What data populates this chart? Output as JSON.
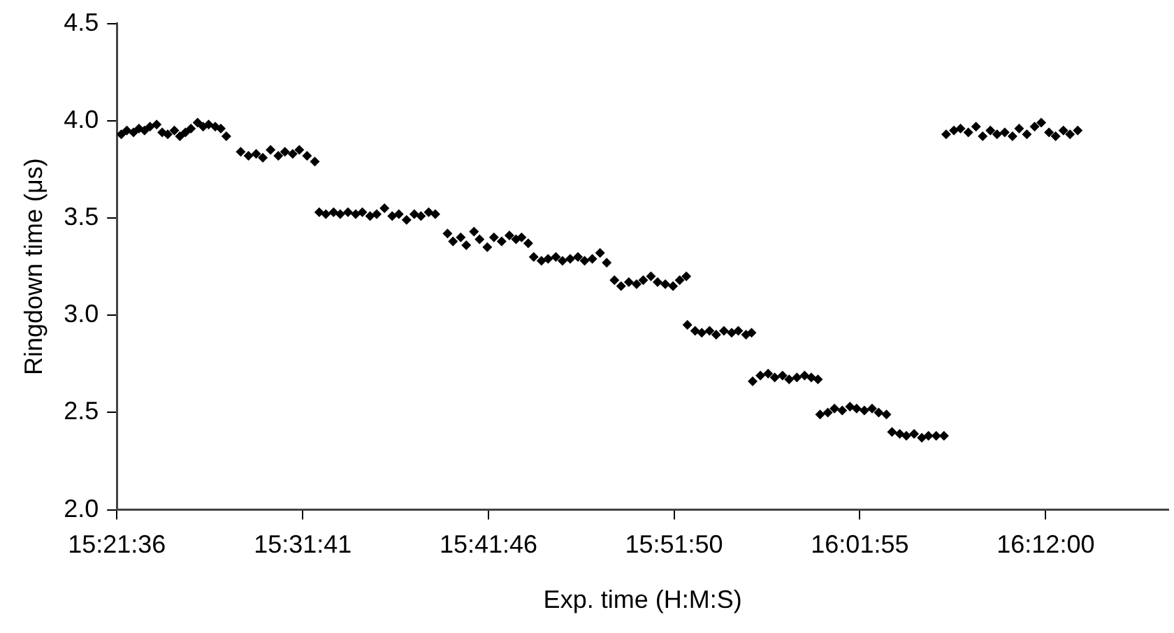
{
  "chart_data": {
    "type": "scatter",
    "xlabel": "Exp. time (H:M:S)",
    "ylabel": "Ringdown time (μs)",
    "marker": "diamond",
    "grid": false,
    "legend": false,
    "xlim": [
      15.36,
      16.311
    ],
    "ylim": [
      2.0,
      4.5
    ],
    "xticks": [
      {
        "value": 15.36,
        "label": "15:21:36"
      },
      {
        "value": 15.5281,
        "label": "15:31:41"
      },
      {
        "value": 15.6961,
        "label": "15:41:46"
      },
      {
        "value": 15.8639,
        "label": "15:51:50"
      },
      {
        "value": 16.0319,
        "label": "16:01:55"
      },
      {
        "value": 16.2,
        "label": "16:12:00"
      }
    ],
    "yticks": [
      {
        "value": 2.0,
        "label": "2.0"
      },
      {
        "value": 2.5,
        "label": "2.5"
      },
      {
        "value": 3.0,
        "label": "3.0"
      },
      {
        "value": 3.5,
        "label": "3.5"
      },
      {
        "value": 4.0,
        "label": "4.0"
      },
      {
        "value": 4.5,
        "label": "4.5"
      }
    ],
    "series": [
      {
        "color": "#000000",
        "x": [
          15.364,
          15.369,
          15.375,
          15.38,
          15.385,
          15.39,
          15.396,
          15.401,
          15.406,
          15.412,
          15.417,
          15.422,
          15.427,
          15.433,
          15.438,
          15.443,
          15.449,
          15.454,
          15.459,
          15.472,
          15.479,
          15.486,
          15.492,
          15.499,
          15.506,
          15.512,
          15.519,
          15.525,
          15.532,
          15.539,
          15.543,
          15.549,
          15.556,
          15.562,
          15.569,
          15.576,
          15.582,
          15.589,
          15.595,
          15.602,
          15.609,
          15.615,
          15.622,
          15.629,
          15.635,
          15.642,
          15.648,
          15.659,
          15.664,
          15.671,
          15.676,
          15.683,
          15.688,
          15.695,
          15.701,
          15.708,
          15.715,
          15.721,
          15.726,
          15.732,
          15.737,
          15.744,
          15.75,
          15.757,
          15.763,
          15.77,
          15.777,
          15.783,
          15.79,
          15.797,
          15.803,
          15.81,
          15.816,
          15.823,
          15.83,
          15.836,
          15.843,
          15.849,
          15.856,
          15.863,
          15.869,
          15.875,
          15.876,
          15.883,
          15.889,
          15.896,
          15.902,
          15.909,
          15.916,
          15.922,
          15.929,
          15.934,
          15.935,
          15.942,
          15.949,
          15.955,
          15.962,
          15.968,
          15.975,
          15.982,
          15.988,
          15.994,
          15.996,
          16.003,
          16.009,
          16.016,
          16.023,
          16.029,
          16.036,
          16.043,
          16.049,
          16.056,
          16.061,
          16.068,
          16.074,
          16.081,
          16.088,
          16.094,
          16.101,
          16.108,
          16.11,
          16.117,
          16.123,
          16.13,
          16.137,
          16.143,
          16.15,
          16.156,
          16.163,
          16.17,
          16.176,
          16.183,
          16.19,
          16.196,
          16.203,
          16.209,
          16.216,
          16.222,
          16.229
        ],
        "values": [
          3.93,
          3.95,
          3.94,
          3.96,
          3.95,
          3.97,
          3.98,
          3.94,
          3.93,
          3.95,
          3.92,
          3.94,
          3.96,
          3.99,
          3.97,
          3.98,
          3.97,
          3.96,
          3.92,
          3.84,
          3.82,
          3.83,
          3.81,
          3.85,
          3.82,
          3.84,
          3.83,
          3.85,
          3.82,
          3.79,
          3.53,
          3.52,
          3.53,
          3.52,
          3.53,
          3.52,
          3.53,
          3.51,
          3.52,
          3.55,
          3.51,
          3.52,
          3.49,
          3.52,
          3.51,
          3.53,
          3.52,
          3.42,
          3.38,
          3.4,
          3.36,
          3.43,
          3.39,
          3.35,
          3.4,
          3.38,
          3.41,
          3.39,
          3.4,
          3.37,
          3.3,
          3.28,
          3.29,
          3.3,
          3.28,
          3.29,
          3.3,
          3.28,
          3.29,
          3.32,
          3.27,
          3.18,
          3.15,
          3.17,
          3.16,
          3.18,
          3.2,
          3.17,
          3.16,
          3.15,
          3.18,
          3.2,
          2.95,
          2.92,
          2.91,
          2.92,
          2.9,
          2.92,
          2.91,
          2.92,
          2.9,
          2.91,
          2.66,
          2.69,
          2.7,
          2.68,
          2.69,
          2.67,
          2.68,
          2.69,
          2.68,
          2.67,
          2.49,
          2.5,
          2.52,
          2.51,
          2.53,
          2.52,
          2.51,
          2.52,
          2.5,
          2.49,
          2.4,
          2.39,
          2.38,
          2.39,
          2.37,
          2.38,
          2.38,
          2.38,
          3.93,
          3.95,
          3.96,
          3.94,
          3.97,
          3.92,
          3.95,
          3.93,
          3.94,
          3.92,
          3.96,
          3.93,
          3.97,
          3.99,
          3.94,
          3.92,
          3.95,
          3.93,
          3.95
        ]
      }
    ]
  }
}
